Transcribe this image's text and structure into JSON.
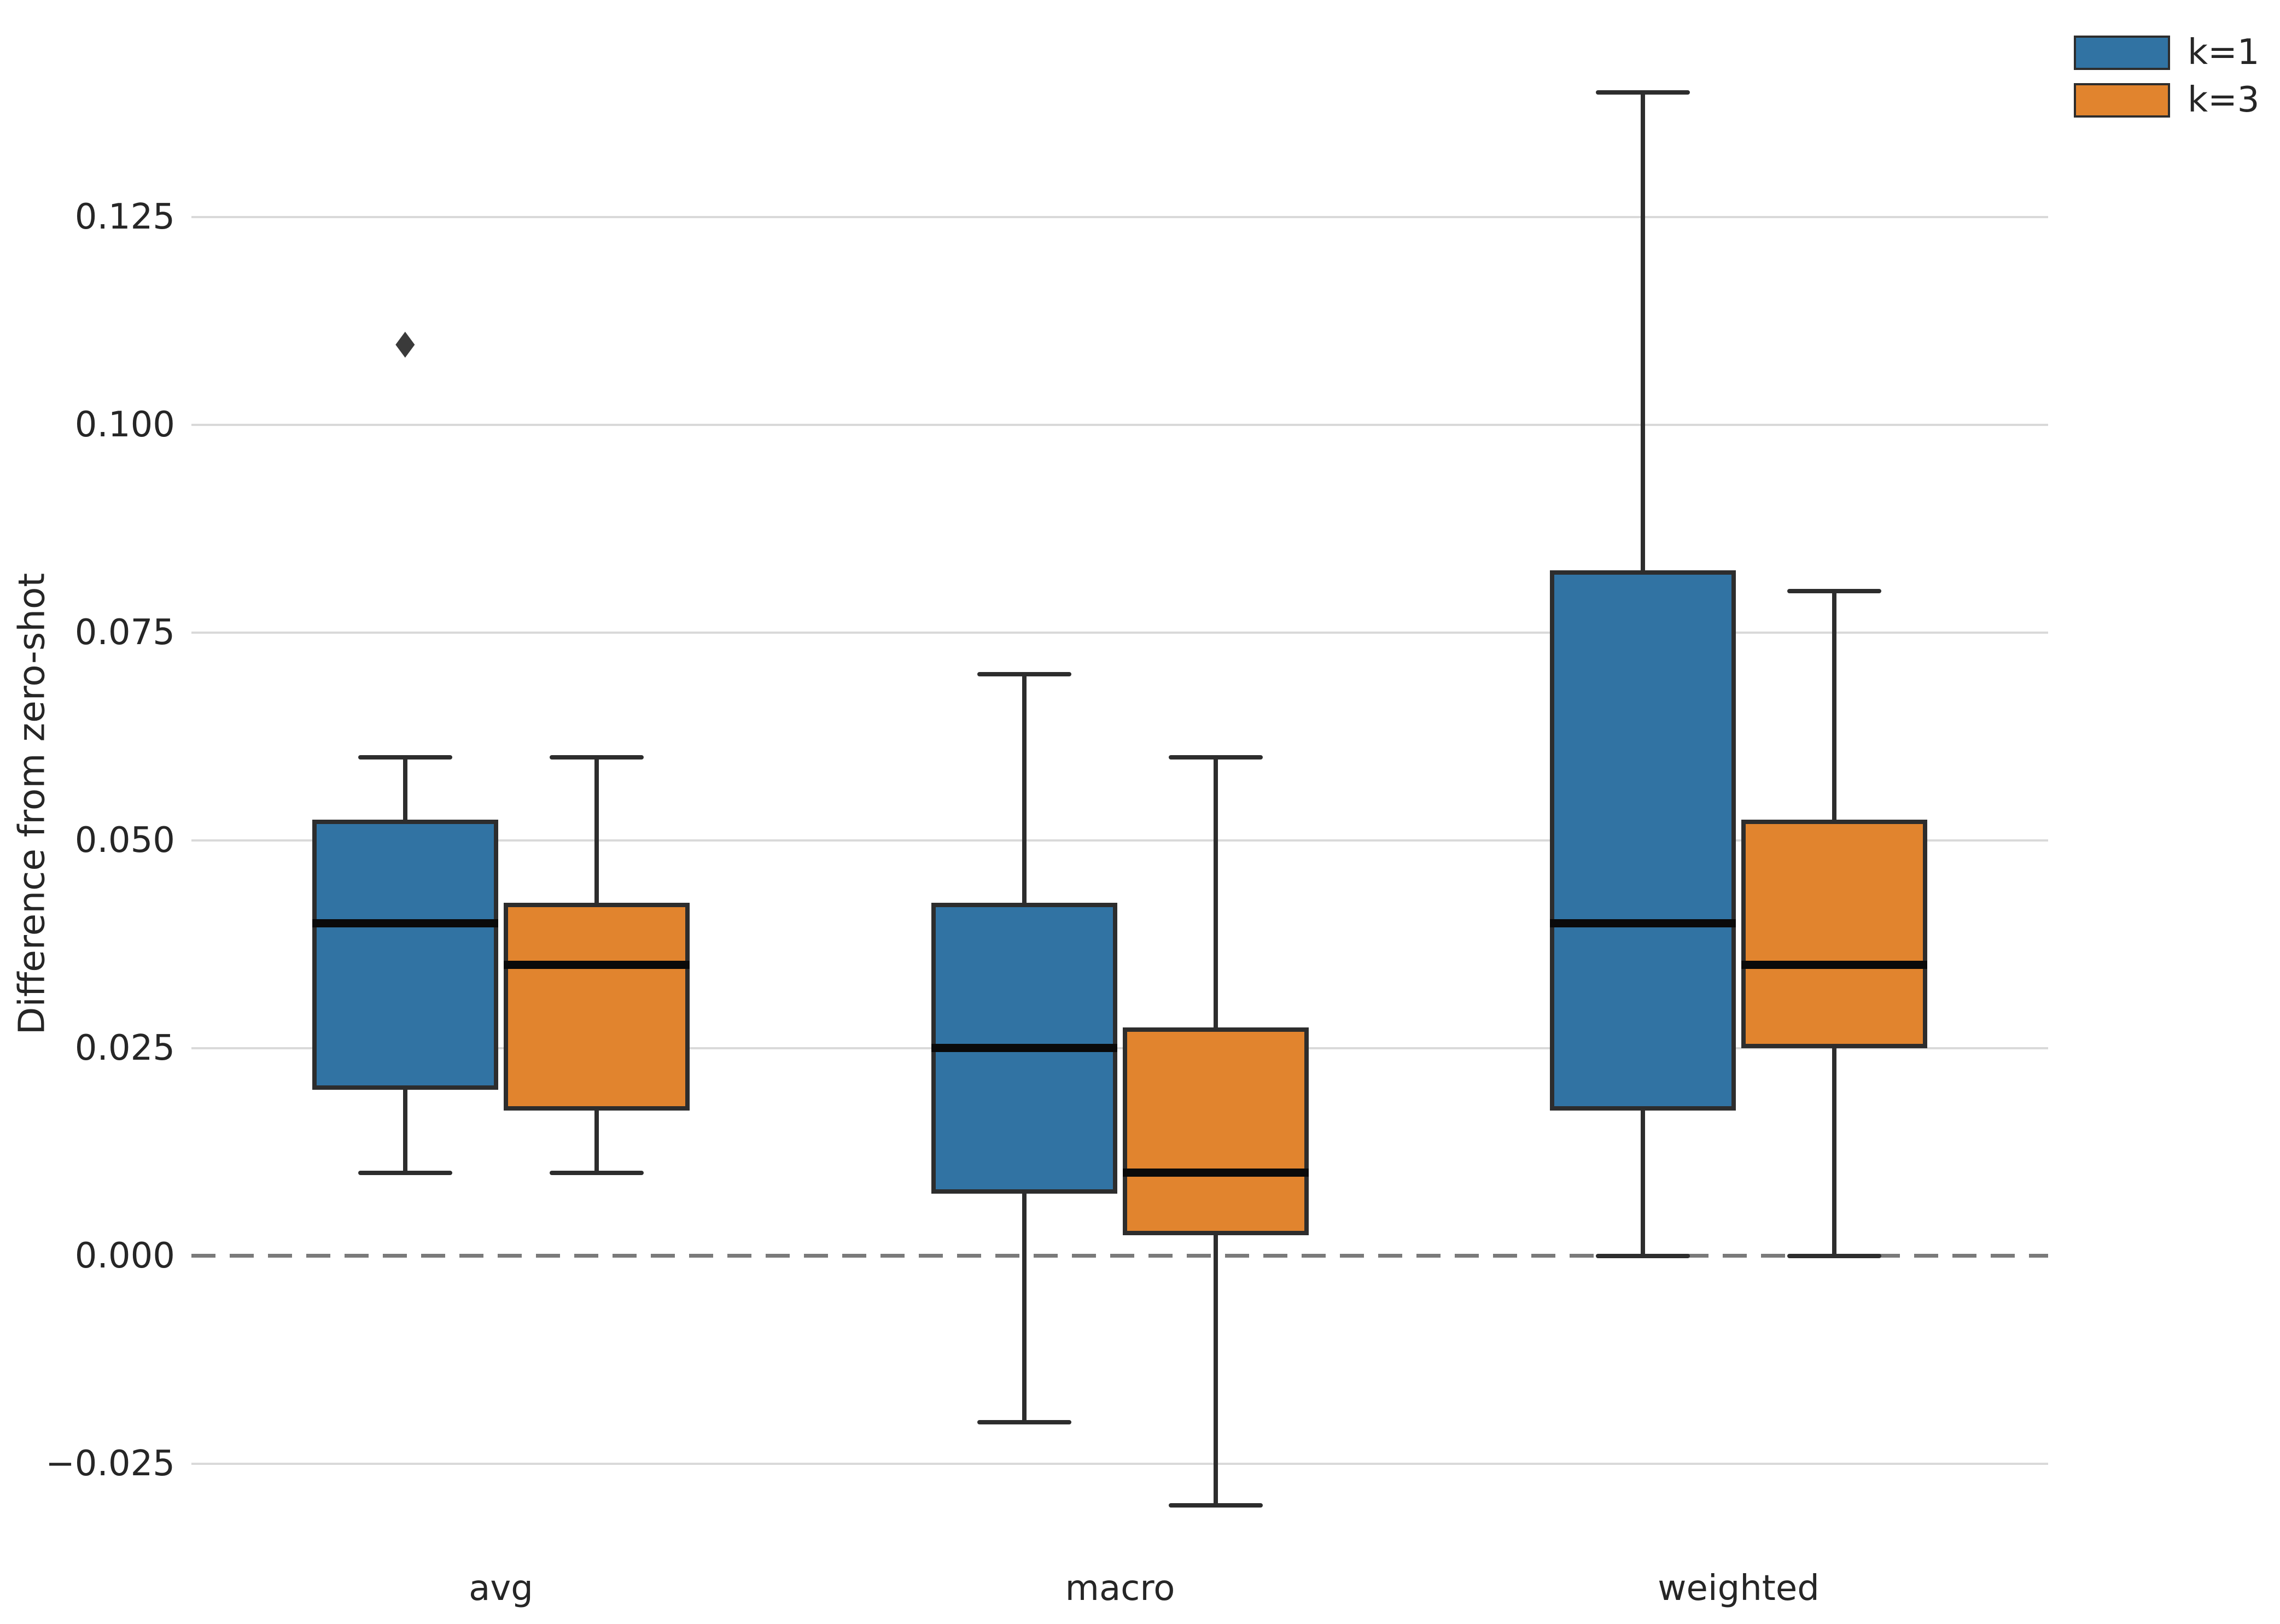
{
  "figure": {
    "title": "",
    "background": "#ffffff"
  },
  "chart_data": {
    "type": "box",
    "title": "",
    "xlabel": "",
    "ylabel": "Difference from zero-shot",
    "categories": [
      "avg",
      "macro",
      "weighted"
    ],
    "ylim": [
      -0.0385,
      0.1485
    ],
    "grid": true,
    "legend_position": "upper right",
    "zero_reference_line": 0.0,
    "yticks": [
      {
        "label": "0.125",
        "value": 0.125
      },
      {
        "label": "0.100",
        "value": 0.1
      },
      {
        "label": "0.075",
        "value": 0.075
      },
      {
        "label": "0.050",
        "value": 0.05
      },
      {
        "label": "0.025",
        "value": 0.025
      },
      {
        "label": "0.000",
        "value": 0.0
      },
      {
        "label": "−0.025",
        "value": -0.025
      }
    ],
    "series": [
      {
        "name": "k=1",
        "color": "#3173a3",
        "boxes": [
          {
            "category": "avg",
            "whisker_low": 0.01,
            "q1": 0.02,
            "median": 0.04,
            "q3": 0.0525,
            "whisker_high": 0.06,
            "outliers": [
              0.11
            ]
          },
          {
            "category": "macro",
            "whisker_low": -0.02,
            "q1": 0.0075,
            "median": 0.025,
            "q3": 0.0425,
            "whisker_high": 0.07,
            "outliers": []
          },
          {
            "category": "weighted",
            "whisker_low": 0.0,
            "q1": 0.0175,
            "median": 0.04,
            "q3": 0.0825,
            "whisker_high": 0.14,
            "outliers": []
          }
        ]
      },
      {
        "name": "k=3",
        "color": "#e1842e",
        "boxes": [
          {
            "category": "avg",
            "whisker_low": 0.01,
            "q1": 0.0175,
            "median": 0.035,
            "q3": 0.0425,
            "whisker_high": 0.06,
            "outliers": []
          },
          {
            "category": "macro",
            "whisker_low": -0.03,
            "q1": 0.0025,
            "median": 0.01,
            "q3": 0.0275,
            "whisker_high": 0.06,
            "outliers": []
          },
          {
            "category": "weighted",
            "whisker_low": 0.0,
            "q1": 0.025,
            "median": 0.035,
            "q3": 0.0525,
            "whisker_high": 0.08,
            "outliers": []
          }
        ]
      }
    ],
    "style": {
      "box_edge_color": "#2d2d2d",
      "median_color": "#0a0a0a",
      "whisker_color": "#2d2d2d",
      "grid_color": "#d9d9d9",
      "zero_line_color": "#7a7a7a",
      "text_color": "#262626",
      "outlier_color": "#3a3a3a",
      "outlier_marker": "◆"
    }
  }
}
